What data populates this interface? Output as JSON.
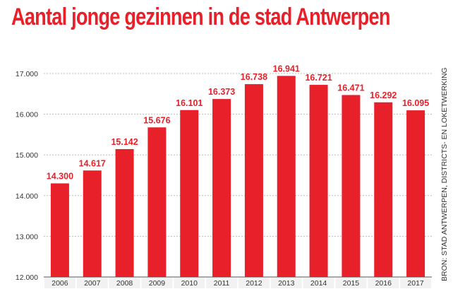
{
  "chart_data": {
    "type": "bar",
    "title": "Aantal jonge gezinnen in de stad Antwerpen",
    "source": "BRON: STAD ANTWERPEN, DISTRICTS- EN LOKETWERKING",
    "categories": [
      "2006",
      "2007",
      "2008",
      "2009",
      "2010",
      "2011",
      "2012",
      "2013",
      "2014",
      "2015",
      "2016",
      "2017"
    ],
    "values": [
      14300,
      14617,
      15142,
      15676,
      16101,
      16373,
      16738,
      16941,
      16721,
      16471,
      16292,
      16095
    ],
    "data_labels": [
      "14.300",
      "14.617",
      "15.142",
      "15.676",
      "16.101",
      "16.373",
      "16.738",
      "16.941",
      "16.721",
      "16.471",
      "16.292",
      "16.095"
    ],
    "y_ticks": [
      12000,
      13000,
      14000,
      15000,
      16000,
      17000
    ],
    "y_tick_labels": [
      "12.000",
      "13.000",
      "14.000",
      "15.000",
      "16.000",
      "17.000"
    ],
    "ylim": [
      12000,
      17000
    ],
    "xlabel": "",
    "ylabel": "",
    "grid": true,
    "colors": {
      "bar": "#e8202a",
      "label": "#e8202a",
      "title": "#e8202a",
      "grid": "#bdbdbd",
      "text": "#333333",
      "tick_box": "#f2f2f2"
    }
  }
}
